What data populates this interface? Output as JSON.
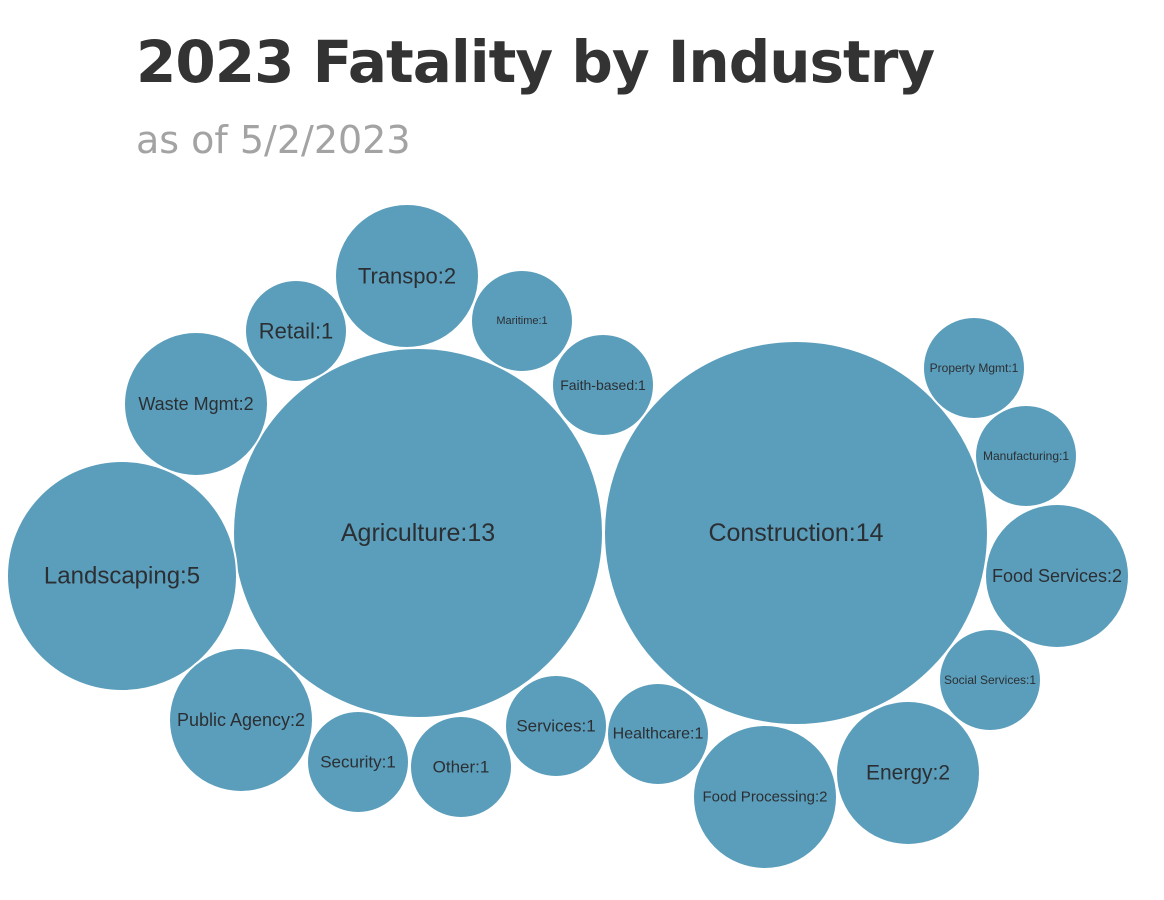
{
  "header": {
    "title": "2023 Fatality by Industry",
    "subtitle": "as of 5/2/2023"
  },
  "colors": {
    "bubble": "#5b9ebb",
    "label": "#2b2f33"
  },
  "chart_data": {
    "type": "bubble",
    "title": "2023 Fatality by Industry",
    "subtitle": "as of 5/2/2023",
    "unit": "fatalities",
    "items": [
      {
        "label": "Construction:14",
        "industry": "Construction",
        "value": 14
      },
      {
        "label": "Agriculture:13",
        "industry": "Agriculture",
        "value": 13
      },
      {
        "label": "Landscaping:5",
        "industry": "Landscaping",
        "value": 5
      },
      {
        "label": "Waste Mgmt:2",
        "industry": "Waste Mgmt",
        "value": 2
      },
      {
        "label": "Transpo:2",
        "industry": "Transpo",
        "value": 2
      },
      {
        "label": "Public Agency:2",
        "industry": "Public Agency",
        "value": 2
      },
      {
        "label": "Food Services:2",
        "industry": "Food Services",
        "value": 2
      },
      {
        "label": "Energy:2",
        "industry": "Energy",
        "value": 2
      },
      {
        "label": "Food Processing:2",
        "industry": "Food Processing",
        "value": 2
      },
      {
        "label": "Retail:1",
        "industry": "Retail",
        "value": 1
      },
      {
        "label": "Maritime:1",
        "industry": "Maritime",
        "value": 1
      },
      {
        "label": "Faith-based:1",
        "industry": "Faith-based",
        "value": 1
      },
      {
        "label": "Property Mgmt:1",
        "industry": "Property Mgmt",
        "value": 1
      },
      {
        "label": "Manufacturing:1",
        "industry": "Manufacturing",
        "value": 1
      },
      {
        "label": "Social Services:1",
        "industry": "Social Services",
        "value": 1
      },
      {
        "label": "Security:1",
        "industry": "Security",
        "value": 1
      },
      {
        "label": "Other:1",
        "industry": "Other",
        "value": 1
      },
      {
        "label": "Services:1",
        "industry": "Services",
        "value": 1
      },
      {
        "label": "Healthcare:1",
        "industry": "Healthcare",
        "value": 1
      }
    ]
  }
}
